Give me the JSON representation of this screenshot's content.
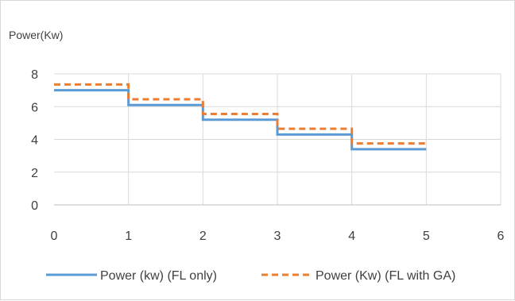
{
  "chart_data": {
    "type": "line",
    "title": "",
    "ylabel": "Power(Kw)",
    "xlabel": "",
    "xlim": [
      0,
      6
    ],
    "ylim": [
      0,
      8
    ],
    "x_ticks": [
      "0",
      "1",
      "2",
      "3",
      "4",
      "5",
      "6"
    ],
    "y_ticks": [
      "0",
      "2",
      "4",
      "6",
      "8"
    ],
    "grid": true,
    "step": true,
    "legend_position": "bottom",
    "series": [
      {
        "name": "Power (kw) (FL only)",
        "color": "#5b9bd5",
        "dash": "solid",
        "x": [
          0,
          1,
          2,
          3,
          4,
          5
        ],
        "y": [
          7.0,
          6.1,
          5.2,
          4.3,
          3.4,
          3.4
        ]
      },
      {
        "name": "Power (Kw) (FL with GA)",
        "color": "#ed7d31",
        "dash": "dashed",
        "x": [
          0,
          1,
          2,
          3,
          4,
          5
        ],
        "y": [
          7.35,
          6.45,
          5.55,
          4.65,
          3.75,
          3.75
        ]
      }
    ]
  }
}
